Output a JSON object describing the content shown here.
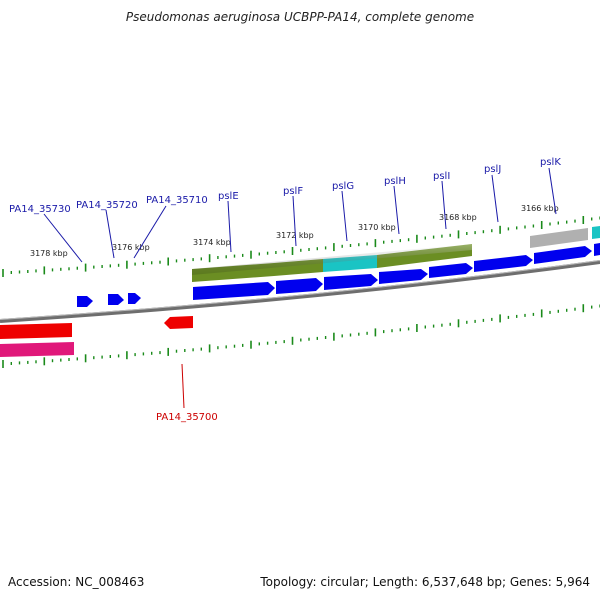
{
  "title": "Pseudomonas aeruginosa UCBPP-PA14, complete genome",
  "footer": {
    "accession": "Accession: NC_008463",
    "summary": "Topology: circular; Length: 6,537,648 bp; Genes: 5,964"
  },
  "colors": {
    "backbone": "#777777",
    "ticks": "#1a8a1a",
    "label_forward": "#1a1aa8",
    "label_reverse": "#cc0000",
    "cds_forward": "#0000ee",
    "cds_reverse": "#ee0000",
    "gene_olive": "#6b8e23",
    "gene_cyan": "#1ac4c4",
    "gene_grey": "#b0b0b0",
    "gene_pink": "#e0187a"
  },
  "scale_labels": [
    "3178 kbp",
    "3176 kbp",
    "3174 kbp",
    "3172 kbp",
    "3170 kbp",
    "3168 kbp",
    "3166 kbp"
  ],
  "gene_labels": [
    {
      "id": "pa14-35730",
      "text": "PA14_35730",
      "strand": "forward"
    },
    {
      "id": "pa14-35720",
      "text": "PA14_35720",
      "strand": "forward"
    },
    {
      "id": "pa14-35710",
      "text": "PA14_35710",
      "strand": "forward"
    },
    {
      "id": "psle",
      "text": "pslE",
      "strand": "forward"
    },
    {
      "id": "pslf",
      "text": "pslF",
      "strand": "forward"
    },
    {
      "id": "pslg",
      "text": "pslG",
      "strand": "forward"
    },
    {
      "id": "pslh",
      "text": "pslH",
      "strand": "forward"
    },
    {
      "id": "psli",
      "text": "pslI",
      "strand": "forward"
    },
    {
      "id": "pslj",
      "text": "pslJ",
      "strand": "forward"
    },
    {
      "id": "pslk",
      "text": "pslK",
      "strand": "forward"
    },
    {
      "id": "pa14-35700",
      "text": "PA14_35700",
      "strand": "reverse"
    }
  ]
}
